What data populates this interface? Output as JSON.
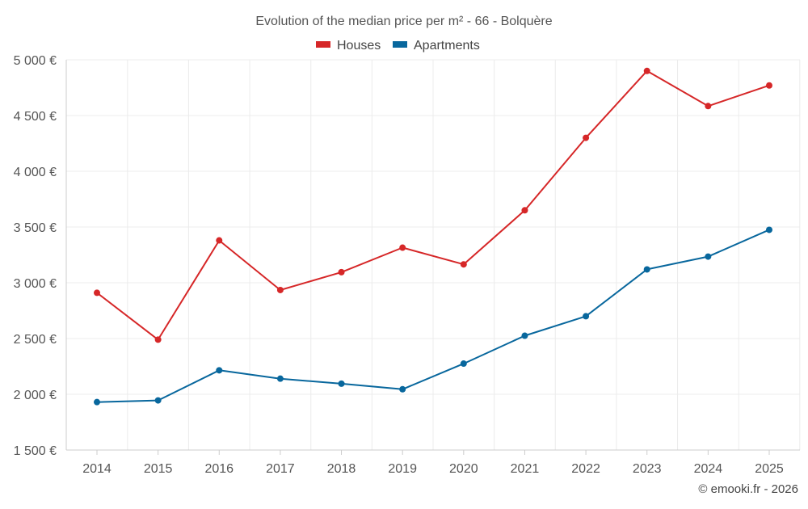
{
  "chart_data": {
    "type": "line",
    "title": "Evolution of the median price per m² - 66 - Bolquère",
    "categories": [
      "2014",
      "2015",
      "2016",
      "2017",
      "2018",
      "2019",
      "2020",
      "2021",
      "2022",
      "2023",
      "2024",
      "2025"
    ],
    "series": [
      {
        "name": "Houses",
        "color": "#d62728",
        "values": [
          2910,
          2490,
          3380,
          2935,
          3095,
          3315,
          3165,
          3650,
          4300,
          4900,
          4585,
          4770
        ]
      },
      {
        "name": "Apartments",
        "color": "#08679d",
        "values": [
          1930,
          1945,
          2215,
          2140,
          2095,
          2045,
          2275,
          2525,
          2700,
          3120,
          3235,
          3475
        ]
      }
    ],
    "ylim": [
      1500,
      5000
    ],
    "yticks": [
      1500,
      2000,
      2500,
      3000,
      3500,
      4000,
      4500,
      5000
    ],
    "ytick_labels": [
      "1 500 €",
      "2 000 €",
      "2 500 €",
      "3 000 €",
      "3 500 €",
      "4 000 €",
      "4 500 €",
      "5 000 €"
    ],
    "xlabel": "",
    "ylabel": "",
    "grid": true,
    "legend_position": "top-center"
  },
  "credit": "© emooki.fr - 2026"
}
